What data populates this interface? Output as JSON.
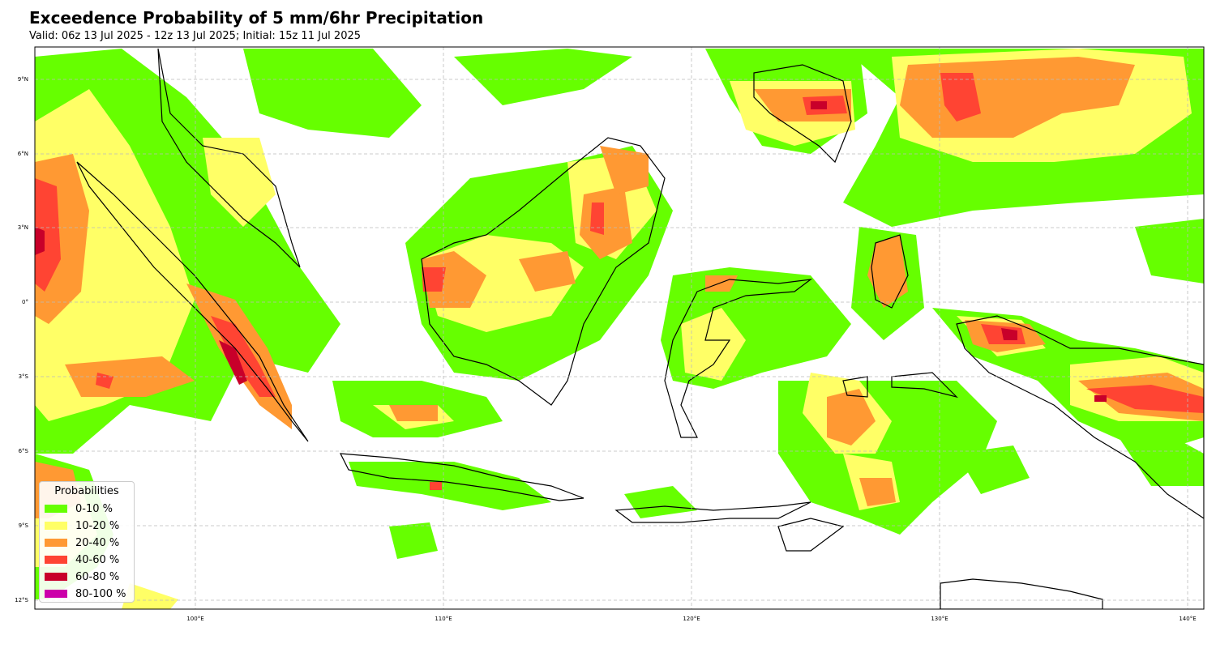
{
  "title": "Exceedence Probability of 5 mm/6hr Precipitation",
  "subtitle": "Valid: 06z 13 Jul 2025 - 12z 13 Jul 2025; Initial: 15z 11 Jul 2025",
  "map": {
    "extent": {
      "lon": [
        93.5,
        140.7
      ],
      "lat": [
        -12.4,
        10.3
      ]
    },
    "lon_ticks": [
      {
        "value": 100,
        "label": "100°E"
      },
      {
        "value": 110,
        "label": "110°E"
      },
      {
        "value": 120,
        "label": "120°E"
      },
      {
        "value": 130,
        "label": "130°E"
      },
      {
        "value": 140,
        "label": "140°E"
      }
    ],
    "lat_ticks": [
      {
        "value": 9,
        "label": "9°N"
      },
      {
        "value": 6,
        "label": "6°N"
      },
      {
        "value": 3,
        "label": "3°N"
      },
      {
        "value": 0,
        "label": "0°"
      },
      {
        "value": -3,
        "label": "3°S"
      },
      {
        "value": -6,
        "label": "6°S"
      },
      {
        "value": -9,
        "label": "9°S"
      },
      {
        "value": -12,
        "label": "12°S"
      }
    ],
    "gridlines": true
  },
  "legend": {
    "title": "Probabilities",
    "placement": "lower-left",
    "items": [
      {
        "label": "0-10 %",
        "color": "#66ff00"
      },
      {
        "label": "10-20 %",
        "color": "#ffff66"
      },
      {
        "label": "20-40 %",
        "color": "#ff9933"
      },
      {
        "label": "40-60 %",
        "color": "#ff4433"
      },
      {
        "label": "60-80 %",
        "color": "#c8002a"
      },
      {
        "label": "80-100 %",
        "color": "#cc00aa"
      }
    ]
  }
}
